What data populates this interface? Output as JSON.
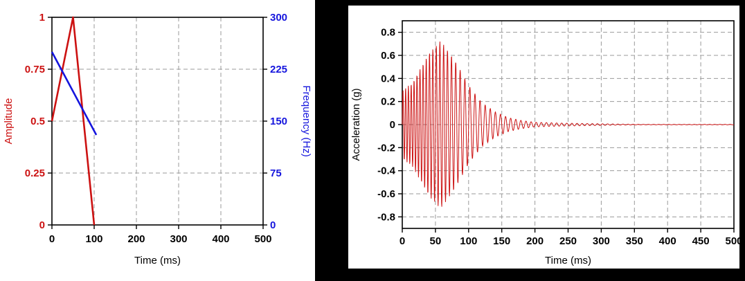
{
  "chart_data": [
    {
      "id": "left",
      "type": "line",
      "title": "",
      "xlabel": "Time (ms)",
      "xlim": [
        0,
        500
      ],
      "x_ticks": [
        0,
        100,
        200,
        300,
        400,
        500
      ],
      "grid": true,
      "legend": "none",
      "axes": {
        "left": {
          "label": "Amplitude",
          "color": "#cc1111",
          "lim": [
            0,
            1
          ],
          "ticks": [
            0,
            0.25,
            0.5,
            0.75,
            1
          ],
          "tick_labels": [
            "0",
            "0.25",
            "0.5",
            "0.75",
            "1"
          ]
        },
        "right": {
          "label": "Frequency (Hz)",
          "color": "#1515dd",
          "lim": [
            0,
            300
          ],
          "ticks": [
            0,
            75,
            150,
            225,
            300
          ],
          "tick_labels": [
            "0",
            "75",
            "150",
            "225",
            "300"
          ]
        }
      },
      "series": [
        {
          "name": "Amplitude",
          "axis": "left",
          "color": "#cc1111",
          "points": [
            [
              0,
              0.5
            ],
            [
              50,
              1
            ],
            [
              100,
              0
            ]
          ]
        },
        {
          "name": "Frequency (Hz)",
          "axis": "right",
          "color": "#1515dd",
          "points": [
            [
              0,
              250
            ],
            [
              105,
              130
            ]
          ]
        }
      ]
    },
    {
      "id": "right",
      "type": "line",
      "title": "",
      "xlabel": "Time (ms)",
      "ylabel": "Acceleration (g)",
      "xlim": [
        0,
        500
      ],
      "x_ticks": [
        0,
        50,
        100,
        150,
        200,
        250,
        300,
        350,
        400,
        450,
        500
      ],
      "ylim": [
        -0.9,
        0.9
      ],
      "y_ticks": [
        -0.8,
        -0.6,
        -0.4,
        -0.2,
        0,
        0.2,
        0.4,
        0.6,
        0.8
      ],
      "grid": true,
      "legend": "none",
      "waveform": {
        "name": "Acceleration",
        "color": "#cc1111",
        "peak_g": 0.73,
        "freq_sweep": {
          "t_ms": [
            0,
            100
          ],
          "f_hz": [
            250,
            130
          ]
        },
        "envelope_g": [
          [
            0,
            0.3
          ],
          [
            15,
            0.36
          ],
          [
            40,
            0.62
          ],
          [
            58,
            0.73
          ],
          [
            80,
            0.55
          ],
          [
            100,
            0.34
          ],
          [
            120,
            0.19
          ],
          [
            140,
            0.11
          ],
          [
            160,
            0.06
          ],
          [
            180,
            0.035
          ],
          [
            200,
            0.02
          ],
          [
            240,
            0.013
          ],
          [
            280,
            0.009
          ],
          [
            320,
            0.005
          ],
          [
            360,
            0.002
          ],
          [
            500,
            0.002
          ]
        ],
        "sample_step_ms": 0.4
      }
    }
  ],
  "colors": {
    "red": "#cc1111",
    "blue": "#1515dd",
    "grid": "#9a9a9a",
    "frame": "#000000",
    "panel_bg": "#ffffff",
    "outer_bg": "#000000"
  }
}
